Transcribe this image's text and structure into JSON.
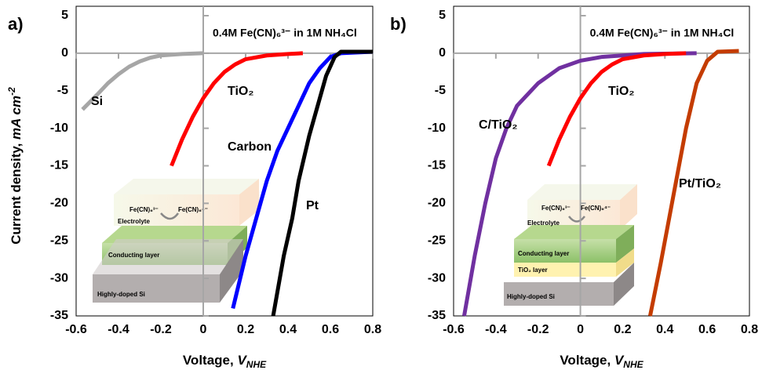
{
  "chart_data": [
    {
      "type": "line",
      "panel_label": "a)",
      "annotation": "0.4M Fe(CN)₆³⁻ in 1M NH₄Cl",
      "xlabel": {
        "main": "Voltage, ",
        "var": "V",
        "sub": "NHE"
      },
      "ylabel": {
        "main": "Current density, ",
        "unit": "mA cm",
        "sup": "-2"
      },
      "xlim": [
        -0.6,
        0.8
      ],
      "ylim": [
        -35,
        5
      ],
      "xticks": [
        -0.6,
        -0.4,
        -0.2,
        0,
        0.2,
        0.4,
        0.6,
        0.8
      ],
      "yticks": [
        5,
        0,
        -5,
        -10,
        -15,
        -20,
        -25,
        -30,
        -35
      ],
      "grid": false,
      "series": [
        {
          "name": "Si",
          "color": "#a6a6a6",
          "x": [
            -0.57,
            -0.5,
            -0.45,
            -0.4,
            -0.35,
            -0.3,
            -0.25,
            -0.2,
            -0.1,
            0
          ],
          "values": [
            -7.5,
            -5.5,
            -4,
            -2.8,
            -1.8,
            -1.1,
            -0.6,
            -0.3,
            -0.1,
            0
          ]
        },
        {
          "name": "TiO₂",
          "color": "#ff0000",
          "x": [
            -0.15,
            -0.1,
            -0.05,
            0,
            0.05,
            0.1,
            0.15,
            0.2,
            0.3,
            0.4,
            0.47
          ],
          "values": [
            -15,
            -11.5,
            -8.5,
            -6,
            -4,
            -2.5,
            -1.5,
            -0.8,
            -0.3,
            -0.1,
            0
          ]
        },
        {
          "name": "Carbon",
          "color": "#0000ff",
          "x": [
            0.14,
            0.2,
            0.25,
            0.3,
            0.35,
            0.4,
            0.45,
            0.5,
            0.55,
            0.6,
            0.65,
            0.8
          ],
          "values": [
            -34,
            -27,
            -22,
            -17,
            -13,
            -10,
            -7,
            -4,
            -2,
            -0.5,
            0,
            0.2
          ]
        },
        {
          "name": "Pt",
          "color": "#000000",
          "x": [
            0.33,
            0.38,
            0.42,
            0.45,
            0.5,
            0.55,
            0.58,
            0.62,
            0.65,
            0.8
          ],
          "values": [
            -35,
            -27,
            -22,
            -17,
            -11,
            -6,
            -3,
            -0.5,
            0.2,
            0.2
          ]
        }
      ],
      "inset": {
        "ion1": "Fe(CN)₆³⁻",
        "ion2": "Fe(CN)₆⁴⁻",
        "electrolyte": "Electrolyte",
        "conducting": "Conducting layer",
        "substrate": "Highly-doped Si"
      }
    },
    {
      "type": "line",
      "panel_label": "b)",
      "annotation": "0.4M Fe(CN)₆³⁻ in 1M NH₄Cl",
      "xlabel": {
        "main": "Voltage, ",
        "var": "V",
        "sub": "NHE"
      },
      "xlim": [
        -0.6,
        0.8
      ],
      "ylim": [
        -35,
        5
      ],
      "xticks": [
        -0.6,
        -0.4,
        -0.2,
        0,
        0.2,
        0.4,
        0.6,
        0.8
      ],
      "yticks": [
        5,
        0,
        -5,
        -10,
        -15,
        -20,
        -25,
        -30,
        -35
      ],
      "grid": false,
      "series": [
        {
          "name": "C/TiO₂",
          "color": "#7030a0",
          "x": [
            -0.55,
            -0.5,
            -0.45,
            -0.4,
            -0.35,
            -0.3,
            -0.2,
            -0.1,
            0,
            0.1,
            0.3,
            0.55
          ],
          "values": [
            -35,
            -27,
            -20,
            -14,
            -10,
            -7,
            -4,
            -2,
            -1,
            -0.5,
            -0.1,
            0
          ]
        },
        {
          "name": "TiO₂",
          "color": "#ff0000",
          "x": [
            -0.15,
            -0.1,
            -0.05,
            0,
            0.05,
            0.1,
            0.15,
            0.2,
            0.3,
            0.4,
            0.5
          ],
          "values": [
            -15,
            -11.5,
            -8.5,
            -6,
            -4,
            -2.5,
            -1.5,
            -0.8,
            -0.3,
            -0.1,
            0
          ]
        },
        {
          "name": "Pt/TiO₂",
          "color": "#c43c00",
          "x": [
            0.33,
            0.38,
            0.42,
            0.46,
            0.5,
            0.55,
            0.6,
            0.65,
            0.75
          ],
          "values": [
            -35,
            -28,
            -22,
            -16,
            -10,
            -4,
            -1,
            0.2,
            0.3
          ]
        }
      ],
      "inset": {
        "ion1": "Fe(CN)₆³⁻",
        "ion2": "Fe(CN)₆⁴⁻",
        "electrolyte": "Electrolyte",
        "conducting": "Conducting layer",
        "tio2": "TiO₂ layer",
        "substrate": "Highly-doped Si"
      }
    }
  ]
}
